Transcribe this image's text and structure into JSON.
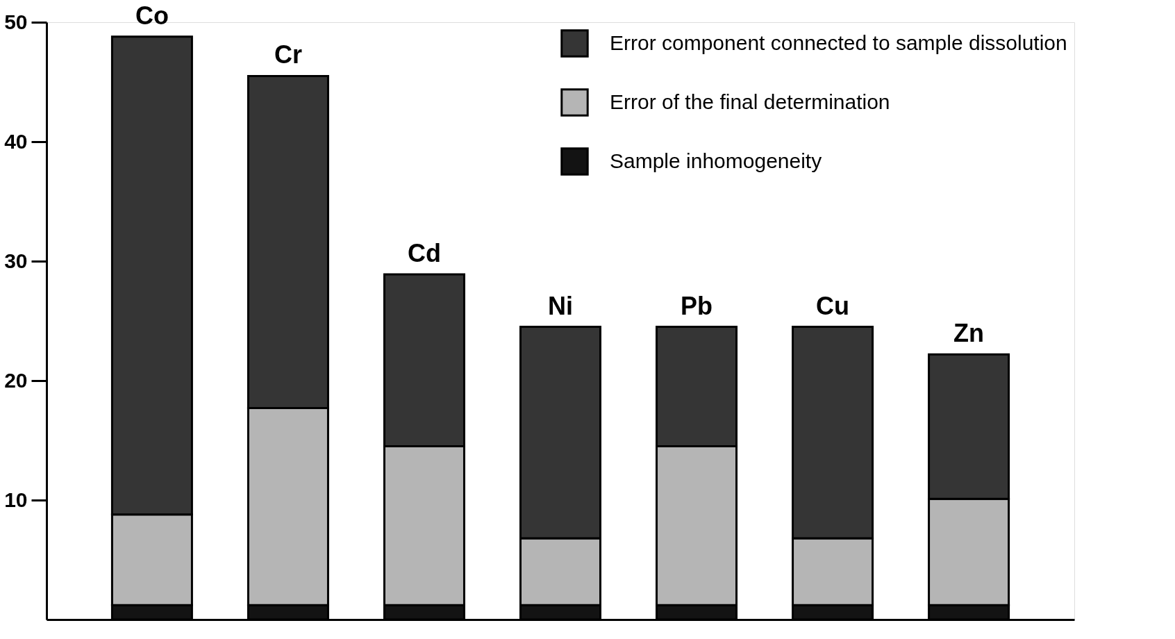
{
  "chart_data": {
    "type": "bar",
    "stacked": true,
    "categories": [
      "Co",
      "Cr",
      "Cd",
      "Ni",
      "Pb",
      "Cu",
      "Zn"
    ],
    "series": [
      {
        "name": "Sample inhomogeneity",
        "color": "#131313",
        "values": [
          1.2,
          1.2,
          1.2,
          1.2,
          1.2,
          1.2,
          1.2
        ]
      },
      {
        "name": "Error of the final determination",
        "color": "#b5b5b5",
        "values": [
          7.6,
          16.5,
          13.3,
          5.6,
          13.3,
          5.6,
          8.9
        ]
      },
      {
        "name": "Error component connected to sample dissolution",
        "color": "#353535",
        "values": [
          40.0,
          27.8,
          14.4,
          17.7,
          10.0,
          17.7,
          12.1
        ]
      }
    ],
    "ylim": [
      0,
      50
    ],
    "yticks": [
      10,
      20,
      30,
      40,
      50
    ],
    "tick_labels": "y",
    "grid": false,
    "legend": "top right"
  }
}
